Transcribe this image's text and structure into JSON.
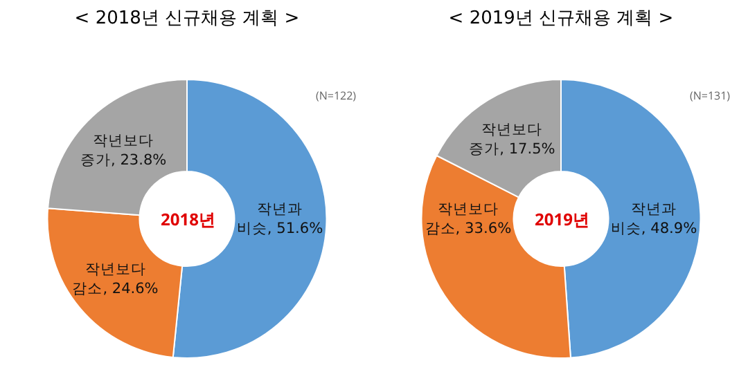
{
  "chart_data": [
    {
      "type": "donut",
      "title": "< 2018년 신규채용 계획 >",
      "categories": [
        "작년과 비슷",
        "작년보다 감소",
        "작년보다 증가"
      ],
      "values": [
        51.6,
        24.6,
        23.8
      ],
      "value_labels": [
        "51.6%",
        "24.6%",
        "23.8%"
      ],
      "colors": [
        "#5b9bd5",
        "#ed7d31",
        "#a5a5a5"
      ],
      "annotations": [
        "(N=122)",
        "2018년"
      ],
      "legend": false
    },
    {
      "type": "donut",
      "title": "< 2019년 신규채용 계획 >",
      "categories": [
        "작년과 비슷",
        "작년보다 감소",
        "작년보다 증가"
      ],
      "values": [
        48.9,
        33.6,
        17.5
      ],
      "value_labels": [
        "48.9%",
        "33.6%",
        "17.5%"
      ],
      "colors": [
        "#5b9bd5",
        "#ed7d31",
        "#a5a5a5"
      ],
      "annotations": [
        "(N=131)",
        "2019년"
      ],
      "legend": false
    }
  ]
}
